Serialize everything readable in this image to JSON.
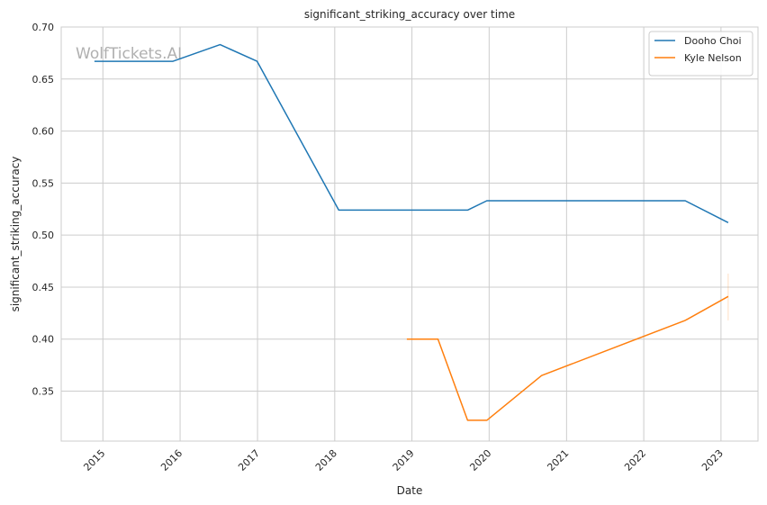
{
  "chart_data": {
    "type": "line",
    "title": "significant_striking_accuracy over time",
    "xlabel": "Date",
    "ylabel": "significant_striking_accuracy",
    "watermark": "WolfTickets.AI",
    "x_tick_labels": [
      "2015",
      "2016",
      "2017",
      "2018",
      "2019",
      "2020",
      "2021",
      "2022",
      "2023"
    ],
    "y_tick_labels": [
      "0.35",
      "0.40",
      "0.45",
      "0.50",
      "0.55",
      "0.60",
      "0.65",
      "0.70"
    ],
    "y_ticks": [
      0.35,
      0.4,
      0.45,
      0.5,
      0.55,
      0.6,
      0.65,
      0.7
    ],
    "xlim": [
      "2014-06-18",
      "2023-06-25"
    ],
    "ylim": [
      0.302,
      0.7
    ],
    "grid": true,
    "legend_position": "top-right",
    "series": [
      {
        "name": "Dooho Choi",
        "color": "#1f77b4",
        "points": [
          {
            "x": "2014-11-22",
            "y": 0.667
          },
          {
            "x": "2015-11-28",
            "y": 0.667
          },
          {
            "x": "2016-07-08",
            "y": 0.683
          },
          {
            "x": "2016-12-30",
            "y": 0.667
          },
          {
            "x": "2018-01-20",
            "y": 0.524
          },
          {
            "x": "2019-09-21",
            "y": 0.524
          },
          {
            "x": "2019-12-21",
            "y": 0.533
          },
          {
            "x": "2022-07-16",
            "y": 0.533
          },
          {
            "x": "2023-02-04",
            "y": 0.512
          }
        ]
      },
      {
        "name": "Kyle Nelson",
        "color": "#ff7f0e",
        "points": [
          {
            "x": "2018-12-08",
            "y": 0.4
          },
          {
            "x": "2019-05-04",
            "y": 0.4
          },
          {
            "x": "2019-09-21",
            "y": 0.322
          },
          {
            "x": "2019-12-21",
            "y": 0.322
          },
          {
            "x": "2020-09-05",
            "y": 0.365
          },
          {
            "x": "2022-07-16",
            "y": 0.418
          },
          {
            "x": "2023-02-04",
            "y": 0.441
          }
        ],
        "error_band": {
          "x": "2023-02-04",
          "low": 0.418,
          "high": 0.463
        }
      }
    ]
  }
}
